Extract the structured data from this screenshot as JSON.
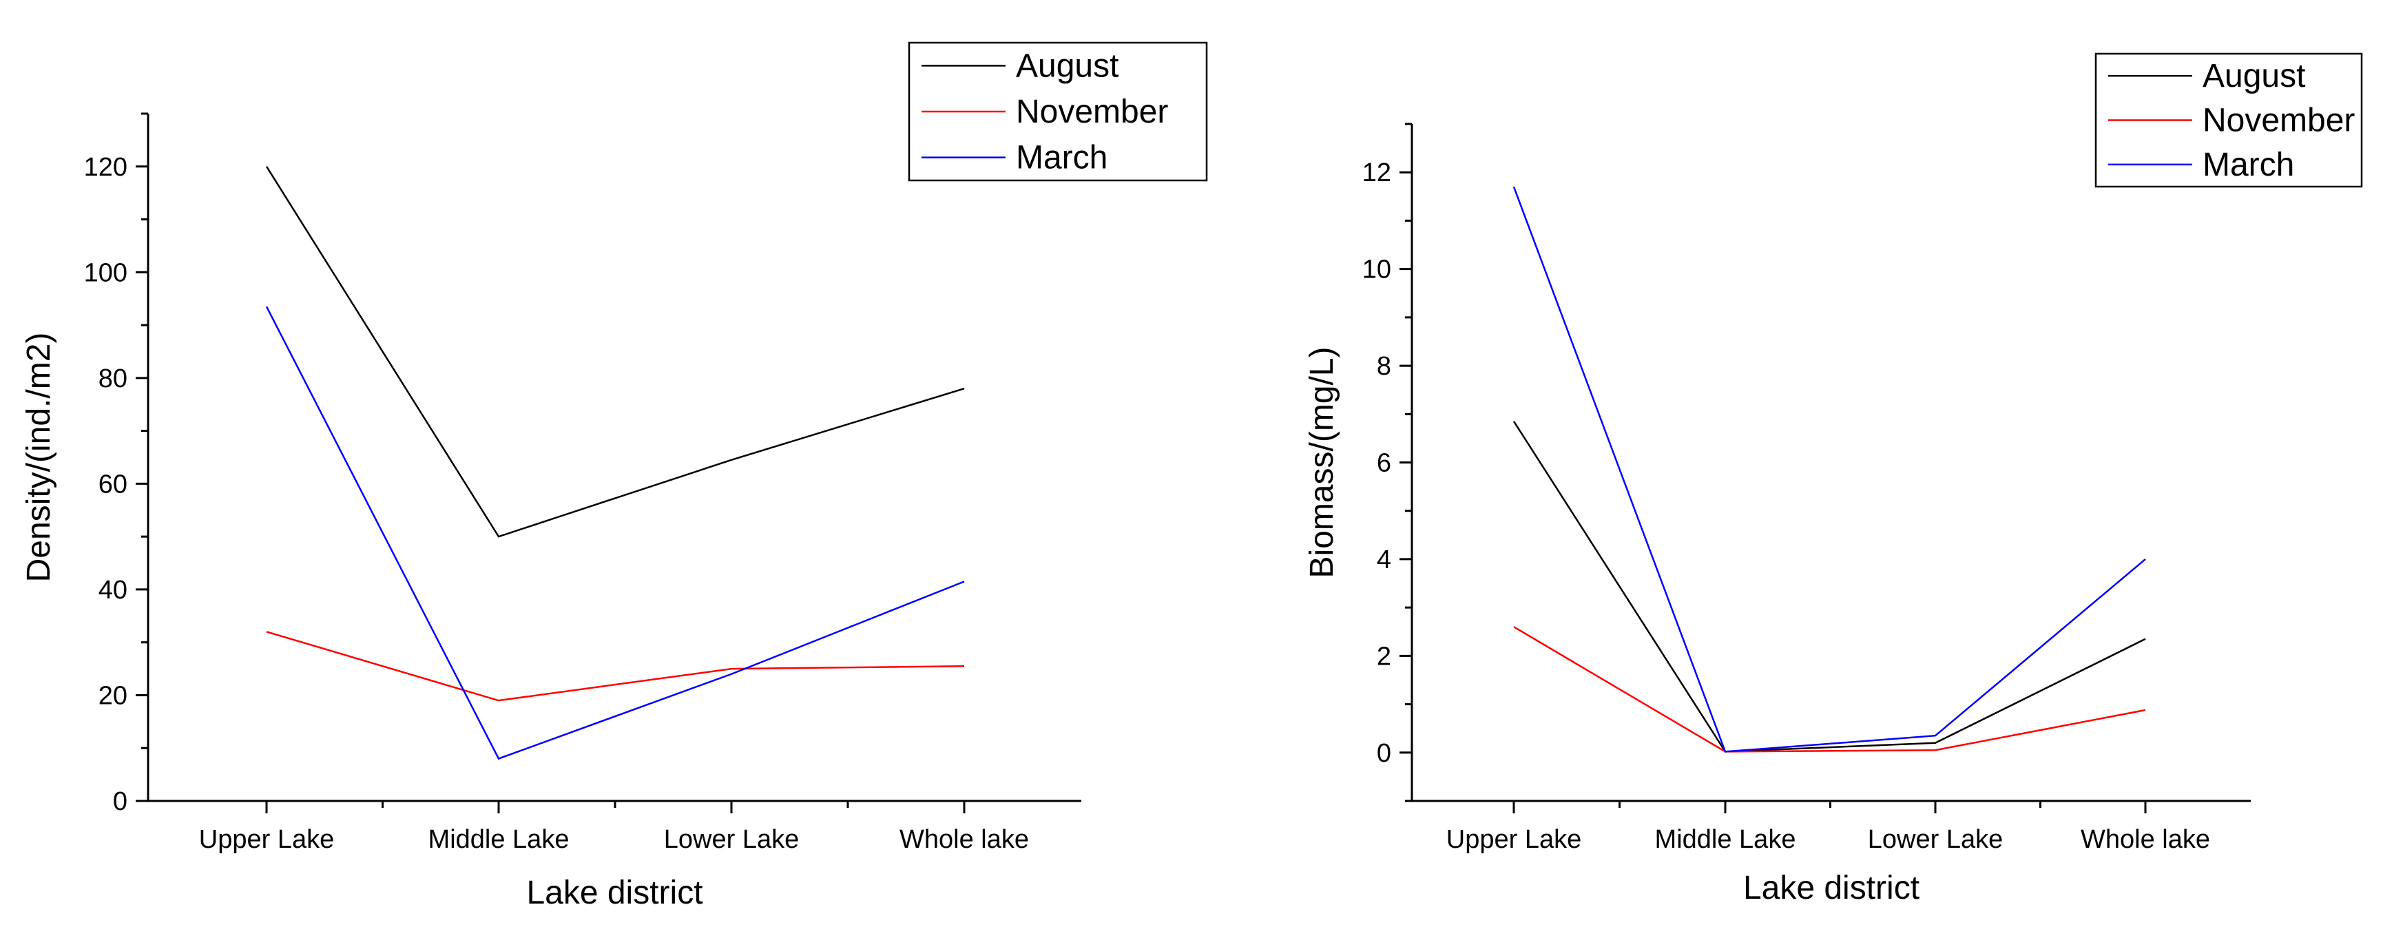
{
  "chart_data": [
    {
      "type": "line",
      "categories": [
        "Upper Lake",
        "Middle Lake",
        "Lower Lake",
        "Whole lake"
      ],
      "xlabel": "Lake district",
      "ylabel": "Density/(ind./m2)",
      "ylim": [
        0,
        130
      ],
      "yticks": [
        0,
        20,
        40,
        60,
        80,
        100,
        120
      ],
      "legend_position": "top-right",
      "series": [
        {
          "name": "August",
          "color": "#000000",
          "values": [
            120,
            50,
            64.5,
            78
          ]
        },
        {
          "name": "November",
          "color": "#ff0000",
          "values": [
            32,
            19,
            25,
            25.5
          ]
        },
        {
          "name": "March",
          "color": "#0000ff",
          "values": [
            93.5,
            8,
            24,
            41.5
          ]
        }
      ]
    },
    {
      "type": "line",
      "categories": [
        "Upper Lake",
        "Middle Lake",
        "Lower Lake",
        "Whole lake"
      ],
      "xlabel": "Lake district",
      "ylabel": "Biomass/(mg/L)",
      "ylim": [
        -1,
        13
      ],
      "yticks": [
        0,
        2,
        4,
        6,
        8,
        10,
        12
      ],
      "legend_position": "top-right",
      "series": [
        {
          "name": "August",
          "color": "#000000",
          "values": [
            6.85,
            0.02,
            0.2,
            2.35
          ]
        },
        {
          "name": "November",
          "color": "#ff0000",
          "values": [
            2.6,
            0.02,
            0.05,
            0.88
          ]
        },
        {
          "name": "March",
          "color": "#0000ff",
          "values": [
            11.7,
            0.02,
            0.35,
            4.0
          ]
        }
      ]
    }
  ]
}
